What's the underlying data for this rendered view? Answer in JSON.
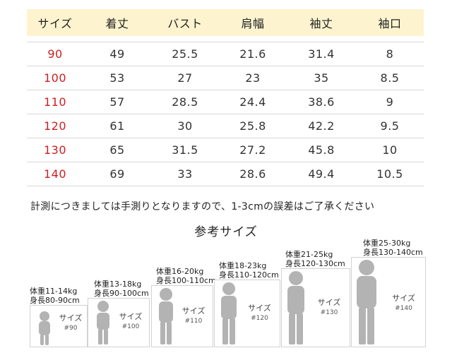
{
  "table": {
    "headers": [
      "サイズ",
      "着丈",
      "バスト",
      "肩幅",
      "袖丈",
      "袖口"
    ],
    "rows": [
      {
        "size": "90",
        "length": "49",
        "bust": "25.5",
        "shoulder": "21.6",
        "sleeve": "31.4",
        "cuff": "8"
      },
      {
        "size": "100",
        "length": "53",
        "bust": "27",
        "shoulder": "23",
        "sleeve": "35",
        "cuff": "8.5"
      },
      {
        "size": "110",
        "length": "57",
        "bust": "28.5",
        "shoulder": "24.4",
        "sleeve": "38.6",
        "cuff": "9"
      },
      {
        "size": "120",
        "length": "61",
        "bust": "30",
        "shoulder": "25.8",
        "sleeve": "42.2",
        "cuff": "9.5"
      },
      {
        "size": "130",
        "length": "65",
        "bust": "31.5",
        "shoulder": "27.2",
        "sleeve": "45.8",
        "cuff": "10"
      },
      {
        "size": "140",
        "length": "69",
        "bust": "33",
        "shoulder": "28.6",
        "sleeve": "49.4",
        "cuff": "10.5"
      }
    ]
  },
  "note": "計測につきましては手測りとなりますので、1-3cmの誤差はご了承ください",
  "reference": {
    "title": "参考サイズ",
    "figures": [
      {
        "weight": "体重11-14kg",
        "height": "身長80-90cm",
        "label": "サイズ",
        "size": "#90"
      },
      {
        "weight": "体重13-18kg",
        "height": "身長90-100cm",
        "label": "サイズ",
        "size": "#100"
      },
      {
        "weight": "体重16-20kg",
        "height": "身長100-110cm",
        "label": "サイズ",
        "size": "#110"
      },
      {
        "weight": "体重18-23kg",
        "height": "身長110-120cm",
        "label": "サイズ",
        "size": "#120"
      },
      {
        "weight": "体重21-25kg",
        "height": "身長120-130cm",
        "label": "サイズ",
        "size": "#130"
      },
      {
        "weight": "体重25-30kg",
        "height": "身長130-140cm",
        "label": "サイズ",
        "size": "#140"
      }
    ]
  }
}
